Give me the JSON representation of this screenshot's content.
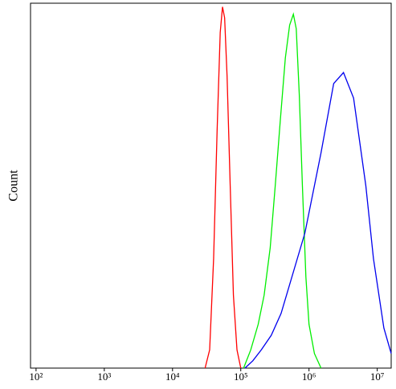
{
  "chart_data": {
    "type": "line",
    "y_label": "Count",
    "xscale": "log",
    "xlim": [
      83,
      16000000
    ],
    "ylim": [
      0,
      100
    ],
    "xticks": [
      {
        "value": 100,
        "label": "10²"
      },
      {
        "value": 1000,
        "label": "10³"
      },
      {
        "value": 10000,
        "label": "10⁴"
      },
      {
        "value": 100000,
        "label": "10⁵"
      },
      {
        "value": 1000000,
        "label": "10⁶"
      },
      {
        "value": 10000000,
        "label": "10⁷"
      }
    ],
    "series": [
      {
        "color": "#ff0000",
        "x": [
          30000,
          35000,
          40000,
          45000,
          50000,
          54000,
          58000,
          63000,
          70000,
          78000,
          88000,
          100000
        ],
        "values": [
          0,
          5,
          30,
          65,
          92,
          99,
          96,
          80,
          50,
          20,
          5,
          0
        ]
      },
      {
        "color": "#00ee00",
        "x": [
          110000,
          140000,
          180000,
          220000,
          270000,
          320000,
          380000,
          450000,
          520000,
          590000,
          650000,
          720000,
          800000,
          900000,
          1000000,
          1200000,
          1500000
        ],
        "values": [
          0,
          5,
          12,
          20,
          33,
          50,
          68,
          85,
          94,
          97,
          93,
          75,
          50,
          25,
          12,
          4,
          0
        ]
      },
      {
        "color": "#0000ee",
        "x": [
          115000,
          150000,
          200000,
          280000,
          390000,
          870000,
          1500000,
          2300000,
          3200000,
          4500000,
          6800000,
          8800000,
          12500000,
          16000000
        ],
        "values": [
          0,
          2,
          5,
          9,
          15,
          37,
          59,
          78,
          81,
          74,
          50,
          30,
          11,
          4
        ]
      }
    ]
  }
}
